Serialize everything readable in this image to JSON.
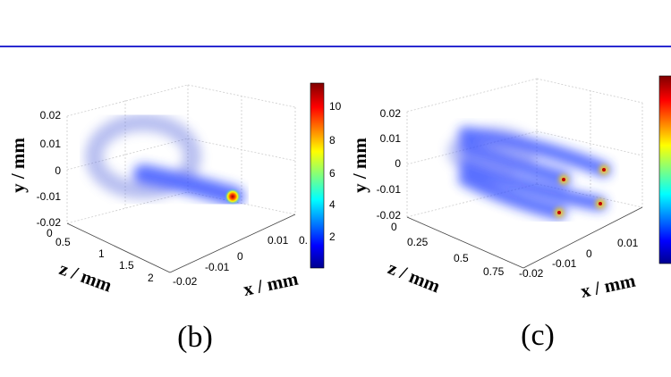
{
  "panels": [
    {
      "caption": "(b)",
      "y_label": "y / mm",
      "z_label": "z / mm",
      "x_label": "x / mm",
      "y_ticks": [
        "0.02",
        "0.01",
        "0",
        "-0.01",
        "-0.02"
      ],
      "z_ticks": [
        "0",
        "0.5",
        "1",
        "1.5",
        "2"
      ],
      "x_ticks": [
        "-0.02",
        "-0.01",
        "0",
        "0.01",
        "0."
      ],
      "colorbar_ticks": [
        "10",
        "8",
        "6",
        "4",
        "2"
      ]
    },
    {
      "caption": "(c)",
      "y_label": "y / mm",
      "z_label": "z / mm",
      "x_label": "x / mm",
      "y_ticks": [
        "0.02",
        "0.01",
        "0",
        "-0.01",
        "-0.02"
      ],
      "z_ticks": [
        "0",
        "0.25",
        "0.5",
        "0.75"
      ],
      "x_ticks": [
        "-0.02",
        "-0.01",
        "0",
        "0.01"
      ]
    }
  ]
}
